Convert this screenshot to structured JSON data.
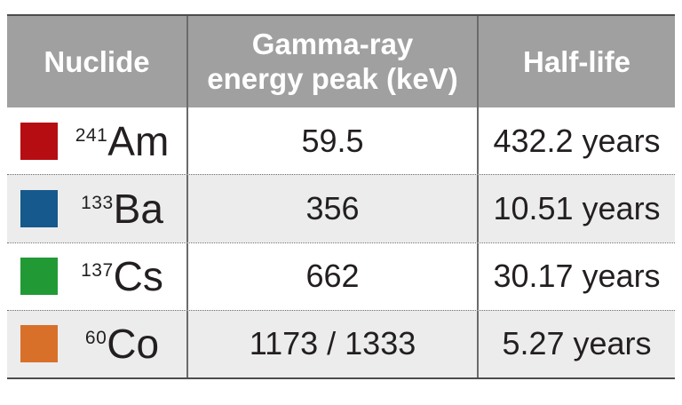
{
  "theme": {
    "header_bg": "#a0a0a0",
    "header_text": "#ffffff",
    "body_text": "#231f20",
    "row_bg": "#ffffff",
    "alt_row_bg": "#ececec",
    "outer_border": "#4c4c4c",
    "column_line": "#6b6b6b",
    "dotted_line": "#6f6f6f"
  },
  "table": {
    "header": {
      "nuclide": "Nuclide",
      "energy_line1": "Gamma-ray",
      "energy_line2": "energy peak (keV)",
      "half_life": "Half-life"
    },
    "rows": [
      {
        "color": "#b60d12",
        "mass": "241",
        "symbol": "Am",
        "energy": "59.5",
        "half_life": "432.2 years"
      },
      {
        "color": "#15598d",
        "mass": "133",
        "symbol": "Ba",
        "energy": "356",
        "half_life": "10.51 years"
      },
      {
        "color": "#219a35",
        "mass": "137",
        "symbol": "Cs",
        "energy": "662",
        "half_life": "30.17 years"
      },
      {
        "color": "#d8702a",
        "mass": "60",
        "symbol": "Co",
        "energy": "1173 / 1333",
        "half_life": "5.27 years"
      }
    ]
  },
  "chart_data": {
    "type": "table",
    "columns": [
      "Nuclide",
      "Gamma-ray energy peak (keV)",
      "Half-life"
    ],
    "rows": [
      [
        "²⁴¹Am",
        "59.5",
        "432.2 years"
      ],
      [
        "¹³³Ba",
        "356",
        "10.51 years"
      ],
      [
        "¹³⁷Cs",
        "662",
        "30.17 years"
      ],
      [
        "⁶⁰Co",
        "1173 / 1333",
        "5.27 years"
      ]
    ],
    "row_swatch_colors": [
      "#b60d12",
      "#15598d",
      "#219a35",
      "#d8702a"
    ]
  }
}
